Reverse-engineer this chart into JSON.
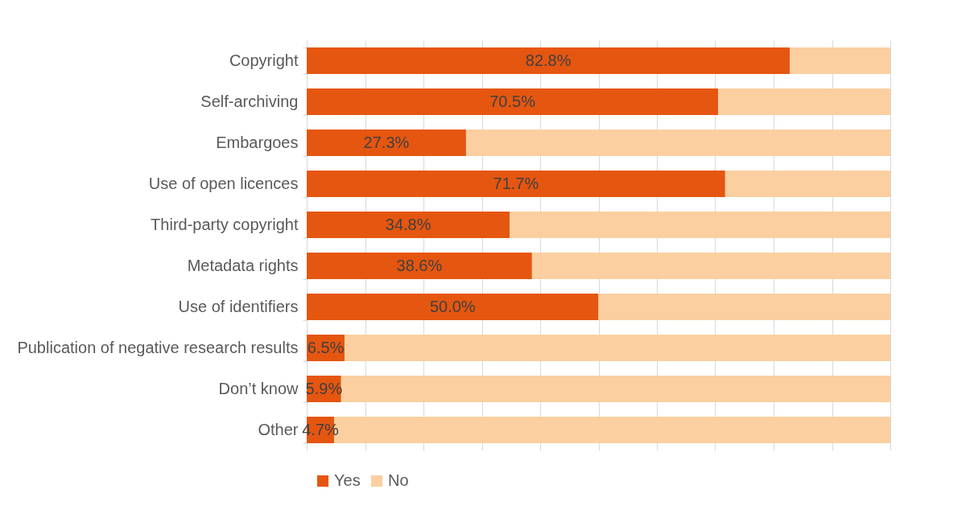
{
  "chart_data": {
    "type": "bar",
    "orientation": "horizontal",
    "stacked": true,
    "categories": [
      "Copyright",
      "Self-archiving",
      "Embargoes",
      "Use of open licences",
      "Third-party copyright",
      "Metadata rights",
      "Use of identifiers",
      "Publication of negative research results",
      "Don’t know",
      "Other"
    ],
    "series": [
      {
        "name": "Yes",
        "color": "#e55610",
        "values": [
          82.8,
          70.5,
          27.3,
          71.7,
          34.8,
          38.6,
          50.0,
          6.5,
          5.9,
          4.7
        ],
        "value_labels": [
          "82.8%",
          "70.5%",
          "27.3%",
          "71.7%",
          "34.8%",
          "38.6%",
          "50.0%",
          "6.5%",
          "5.9%",
          "4.7%"
        ]
      },
      {
        "name": "No",
        "color": "#fbcfa0",
        "values": [
          17.2,
          29.5,
          72.7,
          28.3,
          65.2,
          61.4,
          50.0,
          93.5,
          94.1,
          95.3
        ]
      }
    ],
    "xlim": [
      0,
      100
    ],
    "xticks": [
      {
        "value": 0,
        "label": null
      },
      {
        "value": 10,
        "label": null
      },
      {
        "value": 20,
        "label": null
      },
      {
        "value": 30,
        "label": null
      },
      {
        "value": 40,
        "label": null
      },
      {
        "value": 50,
        "label": null
      },
      {
        "value": 60,
        "label": null
      },
      {
        "value": 70,
        "label": null
      },
      {
        "value": 80,
        "label": null
      },
      {
        "value": 90,
        "label": null
      },
      {
        "value": 100,
        "label": null
      }
    ],
    "grid": "x",
    "legend": "bottom",
    "tick_labels": "y"
  }
}
